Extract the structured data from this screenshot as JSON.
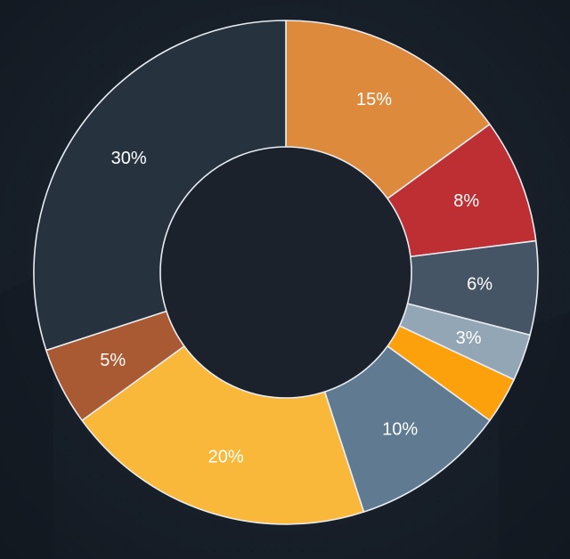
{
  "chart_data": {
    "type": "pie",
    "subtype": "donut",
    "title": "",
    "labels": [
      "15%",
      "8%",
      "6%",
      "3%",
      "",
      "10%",
      "20%",
      "5%",
      "30%"
    ],
    "values": [
      15,
      8,
      6,
      3,
      3,
      10,
      20,
      5,
      30
    ],
    "colors": [
      "#dd8a3d",
      "#bd2f32",
      "#455565",
      "#93a6b6",
      "#fca10c",
      "#5f7a91",
      "#f9b839",
      "#a95a32",
      "#26323e"
    ],
    "center_color": "#1b222c",
    "background_color": "#161c25",
    "border_color": "#e9edf2",
    "start_angle_deg": 0,
    "direction": "clockwise",
    "legend": "none"
  }
}
